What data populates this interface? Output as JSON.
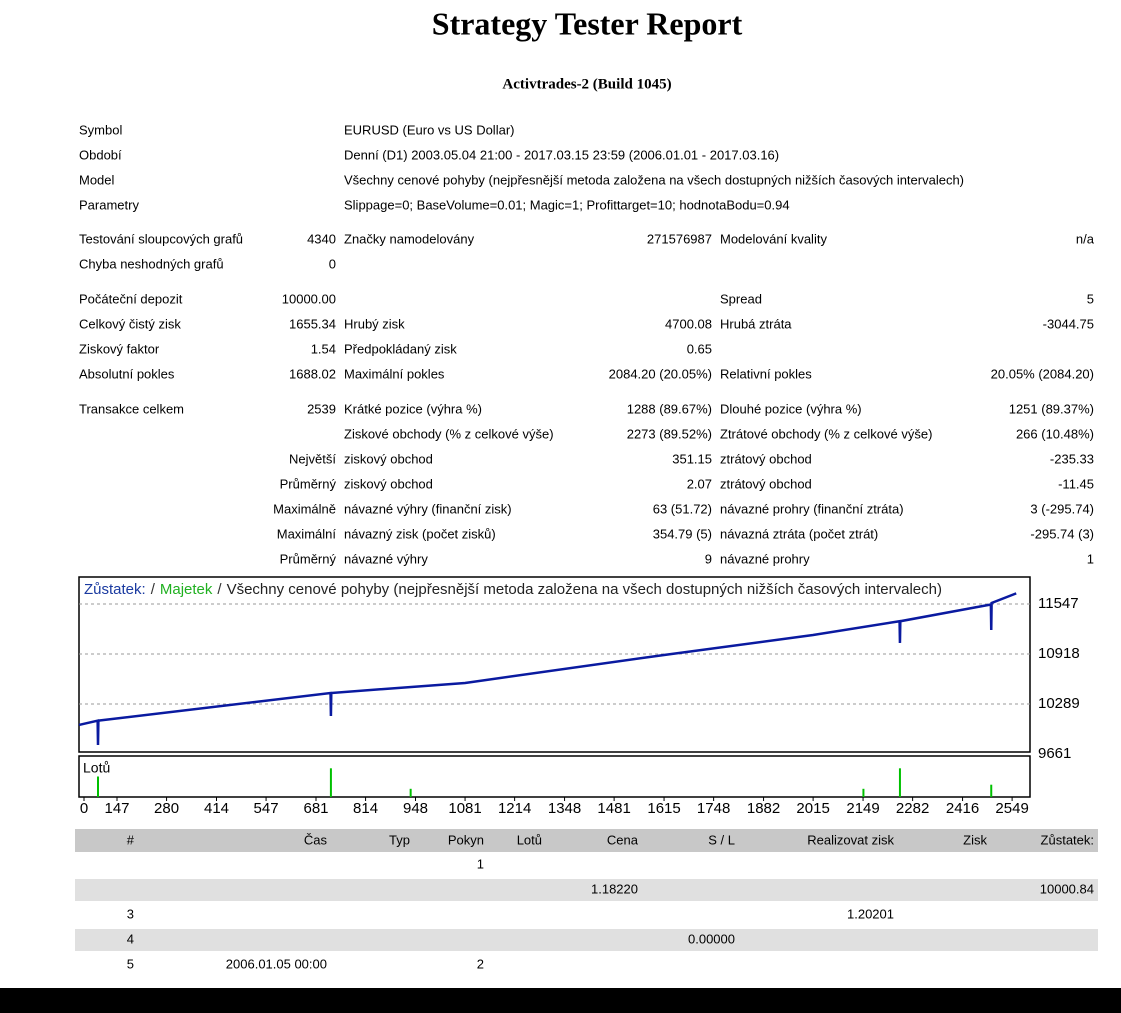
{
  "header": {
    "title": "Strategy Tester Report",
    "build": "Activtrades-2 (Build 1045)"
  },
  "info": [
    [
      "Symbol",
      "EURUSD (Euro vs US Dollar)"
    ],
    [
      "Období",
      "Denní (D1) 2003.05.04 21:00 - 2017.03.15 23:59 (2006.01.01 - 2017.03.16)"
    ],
    [
      "Model",
      "Všechny cenové pohyby (nejpřesnější metoda založena na všech dostupných nižších časových intervalech)"
    ],
    [
      "Parametry",
      "Slippage=0; BaseVolume=0.01; Magic=1; Profittarget=10; hodnotaBodu=0.94"
    ]
  ],
  "groups": [
    [
      [
        "Testování sloupcových grafů",
        "4340",
        "Značky namodelovány",
        "271576987",
        "Modelování kvality",
        "n/a"
      ],
      [
        "Chyba neshodných grafů",
        "0",
        null,
        null,
        null,
        null
      ]
    ],
    [
      [
        "Počáteční depozit",
        "10000.00",
        null,
        null,
        "Spread",
        "5"
      ],
      [
        "Celkový čistý zisk",
        "1655.34",
        "Hrubý zisk",
        "4700.08",
        "Hrubá ztráta",
        "-3044.75"
      ],
      [
        "Ziskový faktor",
        "1.54",
        "Předpokládaný zisk",
        "0.65",
        null,
        null
      ],
      [
        "Absolutní pokles",
        "1688.02",
        "Maximální pokles",
        "2084.20 (20.05%)",
        "Relativní pokles",
        "20.05% (2084.20)"
      ]
    ],
    [
      [
        "Transakce celkem",
        "2539",
        "Krátké pozice (výhra %)",
        "1288 (89.67%)",
        "Dlouhé pozice (výhra %)",
        "1251 (89.37%)"
      ],
      [
        null,
        null,
        "Ziskové obchody (% z celkové výše)",
        "2273 (89.52%)",
        "Ztrátové obchody (% z celkové výše)",
        "266 (10.48%)"
      ],
      [
        null,
        "Největší",
        "ziskový obchod",
        "351.15",
        "ztrátový obchod",
        "-235.33"
      ],
      [
        null,
        "Průměrný",
        "ziskový obchod",
        "2.07",
        "ztrátový obchod",
        "-11.45"
      ],
      [
        null,
        "Maximálně",
        "návazné výhry (finanční zisk)",
        "63 (51.72)",
        "návazné prohry (finanční ztráta)",
        "3 (-295.74)"
      ],
      [
        null,
        "Maximální",
        "návazný zisk (počet zisků)",
        "354.79 (5)",
        "návazná ztráta (počet ztrát)",
        "-295.74 (3)"
      ],
      [
        null,
        "Průměrný",
        "návazné výhry",
        "9",
        "návazné prohry",
        "1"
      ]
    ]
  ],
  "chart": {
    "legend": {
      "balance": "Zůstatek:",
      "separator": "/",
      "equity": "Majetek",
      "model": "Všechny cenové pohyby (nejpřesnější metoda založena na všech dostupných nižších časových intervalech)"
    },
    "lots_label": "Lotů",
    "xlim": [
      45,
      2597
    ],
    "ylim": [
      9686,
      11886
    ],
    "xticks": [
      0,
      147,
      280,
      414,
      547,
      681,
      814,
      948,
      1081,
      1214,
      1348,
      1481,
      1615,
      1748,
      1882,
      2015,
      2149,
      2282,
      2416,
      2549
    ],
    "yticks": [
      11547,
      10918,
      10289,
      9661
    ],
    "balance": {
      "color": "#0a1aa0",
      "x": [
        45,
        95,
        96,
        97,
        720,
        721,
        722,
        1081,
        1615,
        2015,
        2247,
        2248,
        2249,
        2492,
        2493,
        2494,
        2560
      ],
      "values": [
        10026,
        10080,
        9774,
        10080,
        10428,
        10139,
        10428,
        10554,
        10906,
        11157,
        11330,
        11057,
        11330,
        11540,
        11220,
        11560,
        11680
      ]
    },
    "lots": {
      "color": "#00c000",
      "ylim": [
        0,
        0.1
      ],
      "x": [
        96,
        721,
        935,
        2150,
        2248,
        2493
      ],
      "values": [
        0.05,
        0.07,
        0.02,
        0.02,
        0.07,
        0.03
      ]
    }
  },
  "table": {
    "columns": [
      "#",
      "Čas",
      "Typ",
      "Pokyn",
      "Lotů",
      "Cena",
      "S / L",
      "Realizovat zisk",
      "Zisk",
      "Zůstatek:"
    ],
    "rows": [
      {
        "3": "1"
      },
      {
        "5": "1.18220",
        "9": "10000.84"
      },
      {
        "0": "3",
        "7": "1.20201"
      },
      {
        "0": "4",
        "6": "0.00000"
      },
      {
        "0": "5",
        "1": "2006.01.05 00:00",
        "3": "2"
      }
    ]
  }
}
